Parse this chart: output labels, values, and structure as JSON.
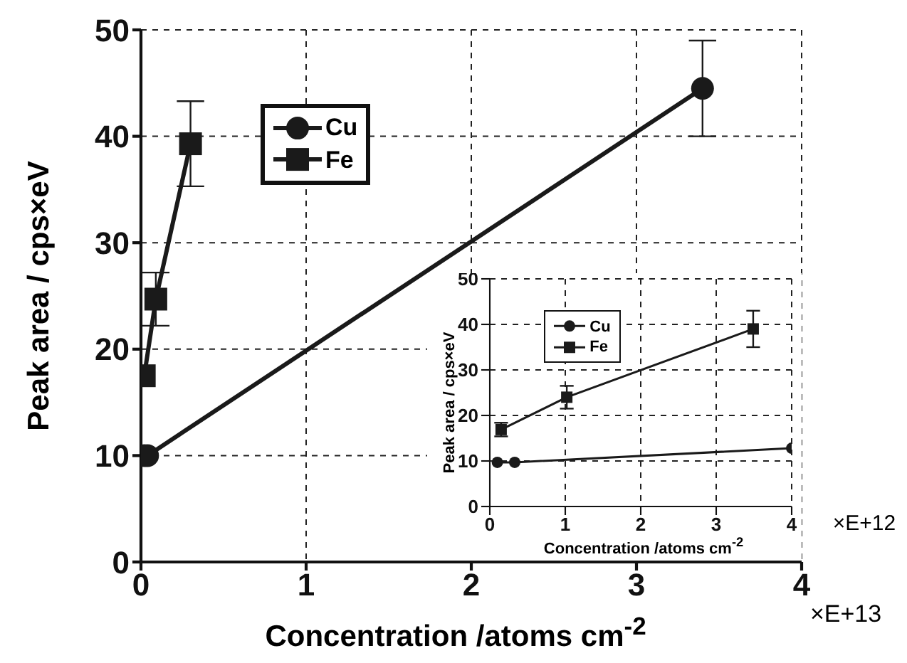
{
  "chart_data": [
    {
      "type": "line",
      "xlabel": "Concentration /atoms cm$^{-2}$",
      "ylabel": "Peak area / cps×eV",
      "annotations": [
        "×E+13"
      ],
      "xlim": [
        0,
        4
      ],
      "xticks": [
        0,
        1,
        2,
        3,
        4
      ],
      "ylim": [
        0,
        50
      ],
      "yticks": [
        0,
        10,
        20,
        30,
        40,
        50
      ],
      "grid": true,
      "legend": "top left",
      "line_style": "solid",
      "series": [
        {
          "name": "Cu",
          "color": "#1a1a1a",
          "marker": "circle",
          "x": [
            0.02,
            0.04,
            3.4
          ],
          "values": [
            10,
            10,
            44.5
          ],
          "errors": [
            null,
            null,
            4.5
          ]
        },
        {
          "name": "Fe",
          "color": "#1a1a1a",
          "marker": "square",
          "x": [
            0.02,
            0.09,
            0.3
          ],
          "values": [
            17.5,
            24.7,
            39.3
          ],
          "errors": [
            null,
            2.5,
            4
          ]
        }
      ]
    },
    {
      "type": "line",
      "xlabel": "Concentration /atoms cm$^{-2}$",
      "ylabel": "Peak area / cps×eV",
      "annotations": [
        "×E+12"
      ],
      "xlim": [
        0,
        4
      ],
      "xticks": [
        0,
        1,
        2,
        3,
        4
      ],
      "ylim": [
        0,
        50
      ],
      "yticks": [
        0,
        10,
        20,
        30,
        40,
        50
      ],
      "grid": true,
      "legend": "top left",
      "line_style": "solid",
      "series": [
        {
          "name": "Cu",
          "color": "#1a1a1a",
          "marker": "circle",
          "x": [
            0.1,
            0.33,
            4
          ],
          "values": [
            9.7,
            9.7,
            12.8
          ]
        },
        {
          "name": "Fe",
          "color": "#1a1a1a",
          "marker": "square",
          "x": [
            0.15,
            1.02,
            3.49
          ],
          "values": [
            16.9,
            24,
            39
          ],
          "errors": [
            1.5,
            2.5,
            4
          ]
        }
      ]
    }
  ]
}
